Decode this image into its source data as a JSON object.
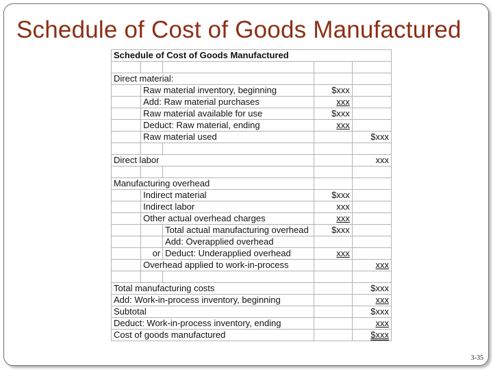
{
  "slide": {
    "title": "Schedule of Cost of Goods Manufactured",
    "page_number": "3-35"
  },
  "schedule": {
    "title": "Schedule of Cost of Goods Manufactured",
    "rows": [
      {
        "a": "",
        "b": "",
        "c": "",
        "d": "",
        "e": ""
      },
      {
        "a": "Direct material:",
        "b": "",
        "c": "",
        "d": "",
        "e": ""
      },
      {
        "a": "",
        "b": "Raw material inventory, beginning",
        "c": "",
        "d": "$xxx",
        "e": ""
      },
      {
        "a": "",
        "b": "Add: Raw material purchases",
        "c": "",
        "d": "xxx",
        "d_u": 1,
        "e": ""
      },
      {
        "a": "",
        "b": "Raw material available for use",
        "c": "",
        "d": "$xxx",
        "e": ""
      },
      {
        "a": "",
        "b": "Deduct: Raw material, ending",
        "c": "",
        "d": "xxx",
        "d_u": 1,
        "e": ""
      },
      {
        "a": "",
        "b": "Raw material used",
        "c": "",
        "d": "",
        "e": "$xxx"
      },
      {
        "a": "",
        "b": "",
        "c": "",
        "d": "",
        "e": ""
      },
      {
        "a": "Direct labor",
        "b": "",
        "c": "",
        "d": "",
        "e": "xxx"
      },
      {
        "a": "",
        "b": "",
        "c": "",
        "d": "",
        "e": ""
      },
      {
        "a": "Manufacturing overhead",
        "b": "",
        "c": "",
        "d": "",
        "e": ""
      },
      {
        "a": "",
        "b": "Indirect material",
        "c": "",
        "d": "$xxx",
        "e": ""
      },
      {
        "a": "",
        "b": "Indirect labor",
        "c": "",
        "d": "xxx",
        "e": ""
      },
      {
        "a": "",
        "b": "Other actual overhead charges",
        "c": "",
        "d": "xxx",
        "d_u": 1,
        "e": ""
      },
      {
        "a": "",
        "b": "",
        "c": "Total actual manufacturing overhead",
        "d": "$xxx",
        "e": ""
      },
      {
        "a": "",
        "b": "",
        "c": "Add: Overapplied overhead",
        "d": "",
        "e": ""
      },
      {
        "a": "",
        "b": "or",
        "c": "Deduct: Underapplied overhead",
        "d": "xxx",
        "d_u": 1,
        "e": ""
      },
      {
        "a": "",
        "b": "Overhead applied to work-in-process",
        "c": "",
        "d": "",
        "e": "xxx",
        "e_u": 1
      },
      {
        "a": "",
        "b": "",
        "c": "",
        "d": "",
        "e": ""
      },
      {
        "a": "Total manufacturing costs",
        "b": "",
        "c": "",
        "d": "",
        "e": "$xxx"
      },
      {
        "a": "Add: Work-in-process inventory, beginning",
        "b": "",
        "c": "",
        "d": "",
        "e": "xxx",
        "e_u": 1
      },
      {
        "a": "Subtotal",
        "b": "",
        "c": "",
        "d": "",
        "e": "$xxx"
      },
      {
        "a": "Deduct:  Work-in-process inventory, ending",
        "b": "",
        "c": "",
        "d": "",
        "e": "xxx",
        "e_u": 1
      },
      {
        "a": "Cost of goods manufactured",
        "b": "",
        "c": "",
        "d": "",
        "e": "$xxx",
        "e_u": 2
      }
    ]
  }
}
